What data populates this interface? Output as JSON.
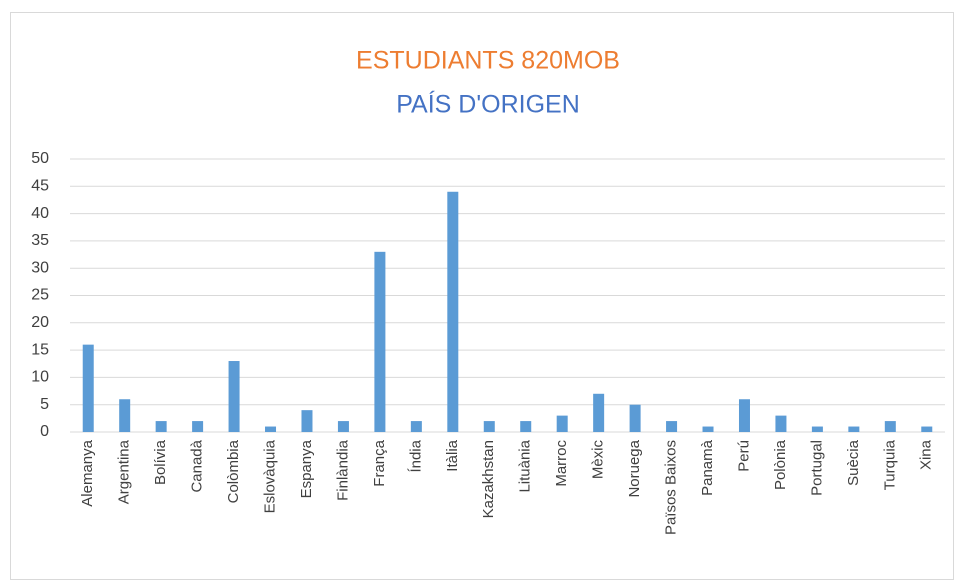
{
  "chart_data": {
    "type": "bar",
    "title": "ESTUDIANTS 820MOB",
    "title_color": "#ed7d31",
    "subtitle": "PAÍS D'ORIGEN",
    "subtitle_color": "#4472c4",
    "categories": [
      "Alemanya",
      "Argentina",
      "Bolívia",
      "Canadà",
      "Colòmbia",
      "Eslovàquia",
      "Espanya",
      "Finlàndia",
      "França",
      "Índia",
      "Itàlia",
      "Kazakhstan",
      "Lituània",
      "Marroc",
      "Mèxic",
      "Noruega",
      "Països Baixos",
      "Panamà",
      "Perú",
      "Polònia",
      "Portugal",
      "Suècia",
      "Turquia",
      "Xina"
    ],
    "values": [
      16,
      6,
      2,
      2,
      13,
      1,
      4,
      2,
      33,
      2,
      44,
      2,
      2,
      3,
      7,
      5,
      2,
      1,
      6,
      3,
      1,
      1,
      2,
      1
    ],
    "color": "#5b9bd5",
    "ylim": [
      0,
      50
    ],
    "yticks": [
      0,
      5,
      10,
      15,
      20,
      25,
      30,
      35,
      40,
      45,
      50
    ],
    "grid": true
  }
}
